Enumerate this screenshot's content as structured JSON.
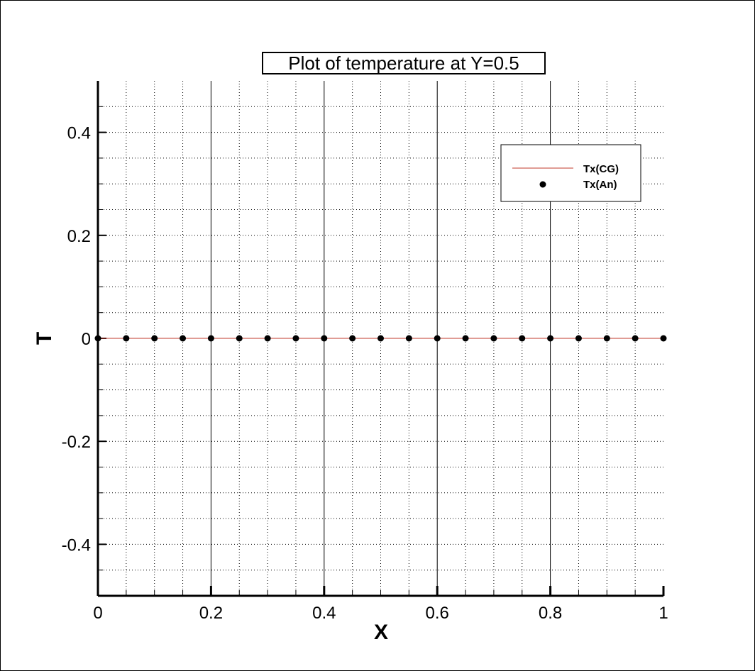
{
  "chart_data": {
    "type": "line",
    "title": "Plot of temperature at Y=0.5",
    "xlabel": "X",
    "ylabel": "T",
    "xlim": [
      0,
      1
    ],
    "ylim": [
      -0.5,
      0.5
    ],
    "x_ticks": [
      "0",
      "0.2",
      "0.4",
      "0.6",
      "0.8",
      "1"
    ],
    "y_ticks": [
      "-0.4",
      "-0.2",
      "0",
      "0.2",
      "0.4"
    ],
    "x_tick_values": [
      0,
      0.2,
      0.4,
      0.6,
      0.8,
      1
    ],
    "y_tick_values": [
      -0.4,
      -0.2,
      0,
      0.2,
      0.4
    ],
    "grid": true,
    "legend_position": "top-right",
    "series": [
      {
        "name": "Tx(CG)",
        "style": "line",
        "color": "#c0392b",
        "x": [
          0,
          0.05,
          0.1,
          0.15,
          0.2,
          0.25,
          0.3,
          0.35,
          0.4,
          0.45,
          0.5,
          0.55,
          0.6,
          0.65,
          0.7,
          0.75,
          0.8,
          0.85,
          0.9,
          0.95,
          1
        ],
        "values": [
          0,
          0,
          0,
          0,
          0,
          0,
          0,
          0,
          0,
          0,
          0,
          0,
          0,
          0,
          0,
          0,
          0,
          0,
          0,
          0,
          0
        ]
      },
      {
        "name": "Tx(An)",
        "style": "marker",
        "color": "#000000",
        "x": [
          0,
          0.05,
          0.1,
          0.15,
          0.2,
          0.25,
          0.3,
          0.35,
          0.4,
          0.45,
          0.5,
          0.55,
          0.6,
          0.65,
          0.7,
          0.75,
          0.8,
          0.85,
          0.9,
          0.95,
          1
        ],
        "values": [
          0,
          0,
          0,
          0,
          0,
          0,
          0,
          0,
          0,
          0,
          0,
          0,
          0,
          0,
          0,
          0,
          0,
          0,
          0,
          0,
          0
        ]
      }
    ]
  }
}
